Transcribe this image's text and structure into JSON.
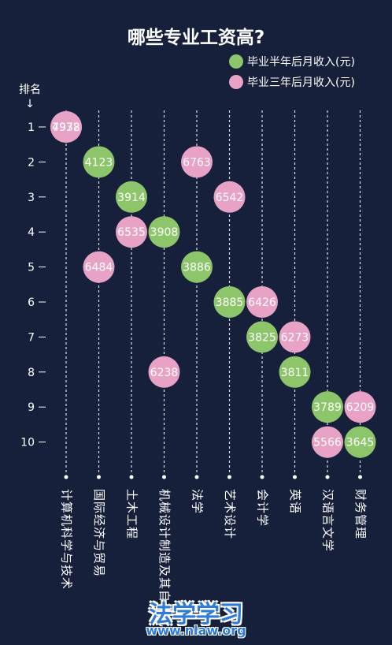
{
  "colors": {
    "background": "#16203a",
    "half_year": "#8cc56a",
    "three_year": "#e8a2c6"
  },
  "chart_data": {
    "type": "scatter",
    "title": "哪些专业工资高?",
    "rank_header": "排名",
    "rank_arrow": "↓",
    "ranks": [
      "1",
      "2",
      "3",
      "4",
      "5",
      "6",
      "7",
      "8",
      "9",
      "10"
    ],
    "categories": [
      "计算机科学与技术",
      "国际经济与贸易",
      "土木工程",
      "机械设计制造及其自动化",
      "法学",
      "艺术设计",
      "会计学",
      "英语",
      "汉语言文学",
      "财务管理"
    ],
    "legend_position": "top-right",
    "series": [
      {
        "name": "毕业半年后月收入(元)",
        "points": [
          {
            "category": "计算机科学与技术",
            "rank": 1,
            "value": 4978
          },
          {
            "category": "国际经济与贸易",
            "rank": 2,
            "value": 4123
          },
          {
            "category": "土木工程",
            "rank": 3,
            "value": 3914
          },
          {
            "category": "机械设计制造及其自动化",
            "rank": 4,
            "value": 3908
          },
          {
            "category": "法学",
            "rank": 5,
            "value": 3886
          },
          {
            "category": "艺术设计",
            "rank": 6,
            "value": 3885
          },
          {
            "category": "会计学",
            "rank": 7,
            "value": 3825
          },
          {
            "category": "英语",
            "rank": 8,
            "value": 3811
          },
          {
            "category": "汉语言文学",
            "rank": 9,
            "value": 3789
          },
          {
            "category": "财务管理",
            "rank": 10,
            "value": 3645
          }
        ]
      },
      {
        "name": "毕业三年后月收入(元)",
        "points": [
          {
            "category": "计算机科学与技术",
            "rank": 1,
            "value": 7932
          },
          {
            "category": "法学",
            "rank": 2,
            "value": 6763
          },
          {
            "category": "艺术设计",
            "rank": 3,
            "value": 6542
          },
          {
            "category": "土木工程",
            "rank": 4,
            "value": 6535
          },
          {
            "category": "国际经济与贸易",
            "rank": 5,
            "value": 6484
          },
          {
            "category": "会计学",
            "rank": 6,
            "value": 6426
          },
          {
            "category": "英语",
            "rank": 7,
            "value": 6273
          },
          {
            "category": "机械设计制造及其自动化",
            "rank": 8,
            "value": 6238
          },
          {
            "category": "财务管理",
            "rank": 9,
            "value": 6209
          },
          {
            "category": "汉语言文学",
            "rank": 10,
            "value": 5566
          }
        ]
      }
    ]
  },
  "watermark": {
    "main": "法学学习",
    "url": "www.nlaw.org"
  }
}
